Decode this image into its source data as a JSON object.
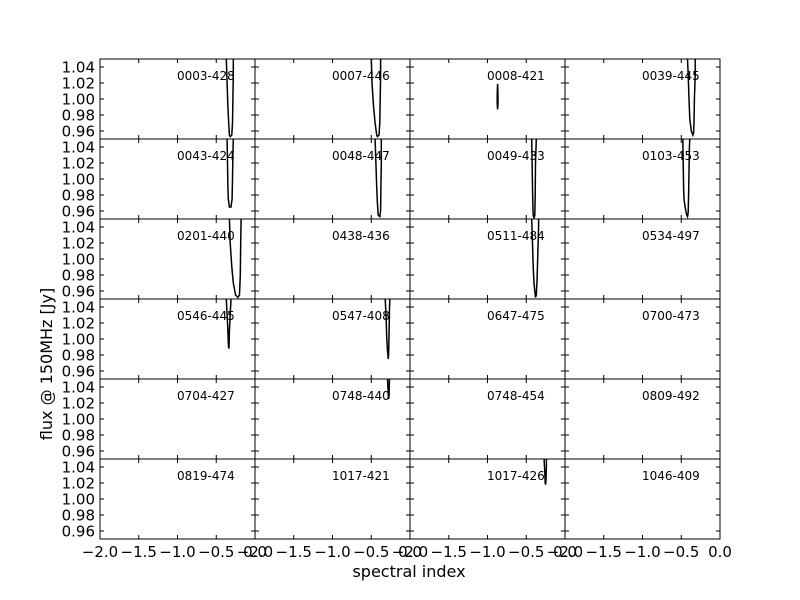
{
  "chart_data": {
    "type": "line",
    "xlabel": "spectral index",
    "ylabel": "flux @ 150MHz [Jy]",
    "xlim": [
      -2.0,
      0.0
    ],
    "ylim": [
      0.95,
      1.05
    ],
    "xticks": [
      "−2.0",
      "−1.5",
      "−1.0",
      "−0.5",
      "0.0"
    ],
    "yticks": [
      "0.96",
      "0.98",
      "1.00",
      "1.02",
      "1.04"
    ],
    "grid": false,
    "layout": {
      "rows": 6,
      "cols": 4
    },
    "panels": [
      {
        "label": "0003-428",
        "contours": [
          [
            [
              -0.37,
              1.05
            ],
            [
              -0.36,
              1.02
            ],
            [
              -0.35,
              0.99
            ],
            [
              -0.34,
              0.97
            ],
            [
              -0.33,
              0.955
            ],
            [
              -0.32,
              0.953
            ],
            [
              -0.3,
              0.955
            ],
            [
              -0.29,
              0.97
            ],
            [
              -0.285,
              1.0
            ],
            [
              -0.28,
              1.03
            ],
            [
              -0.28,
              1.05
            ]
          ]
        ]
      },
      {
        "label": "0007-446",
        "contours": [
          [
            [
              -0.5,
              1.05
            ],
            [
              -0.49,
              1.02
            ],
            [
              -0.47,
              0.99
            ],
            [
              -0.45,
              0.97
            ],
            [
              -0.43,
              0.955
            ],
            [
              -0.42,
              0.953
            ],
            [
              -0.4,
              0.955
            ],
            [
              -0.39,
              0.97
            ],
            [
              -0.385,
              1.0
            ],
            [
              -0.38,
              1.03
            ],
            [
              -0.38,
              1.05
            ]
          ]
        ]
      },
      {
        "label": "0008-421",
        "contours": [
          [
            [
              -0.87,
              0.987
            ],
            [
              -0.875,
              0.995
            ],
            [
              -0.875,
              1.005
            ],
            [
              -0.87,
              1.019
            ],
            [
              -0.865,
              1.005
            ],
            [
              -0.865,
              0.995
            ],
            [
              -0.87,
              0.987
            ]
          ]
        ]
      },
      {
        "label": "0039-445",
        "contours": [
          [
            [
              -0.42,
              1.05
            ],
            [
              -0.41,
              1.03
            ],
            [
              -0.4,
              1.0
            ],
            [
              -0.39,
              0.975
            ],
            [
              -0.37,
              0.96
            ],
            [
              -0.35,
              0.955
            ],
            [
              -0.34,
              0.958
            ],
            [
              -0.335,
              0.97
            ],
            [
              -0.33,
              1.0
            ],
            [
              -0.32,
              1.03
            ],
            [
              -0.32,
              1.05
            ]
          ]
        ]
      },
      {
        "label": "0043-424",
        "contours": [
          [
            [
              -0.36,
              1.05
            ],
            [
              -0.355,
              1.02
            ],
            [
              -0.35,
              0.99
            ],
            [
              -0.345,
              0.975
            ],
            [
              -0.33,
              0.965
            ],
            [
              -0.31,
              0.965
            ],
            [
              -0.295,
              0.975
            ],
            [
              -0.29,
              1.0
            ],
            [
              -0.285,
              1.03
            ],
            [
              -0.28,
              1.05
            ]
          ]
        ]
      },
      {
        "label": "0048-447",
        "contours": [
          [
            [
              -0.45,
              1.05
            ],
            [
              -0.44,
              1.02
            ],
            [
              -0.43,
              0.99
            ],
            [
              -0.42,
              0.97
            ],
            [
              -0.41,
              0.955
            ],
            [
              -0.39,
              0.953
            ],
            [
              -0.38,
              0.96
            ],
            [
              -0.375,
              0.99
            ],
            [
              -0.37,
              1.02
            ],
            [
              -0.37,
              1.05
            ]
          ]
        ]
      },
      {
        "label": "0049-433",
        "contours": [
          [
            [
              -0.43,
              1.05
            ],
            [
              -0.425,
              1.02
            ],
            [
              -0.42,
              0.99
            ],
            [
              -0.415,
              0.97
            ],
            [
              -0.41,
              0.955
            ],
            [
              -0.4,
              0.951
            ],
            [
              -0.39,
              0.955
            ],
            [
              -0.385,
              0.98
            ],
            [
              -0.38,
              1.02
            ],
            [
              -0.37,
              1.05
            ]
          ]
        ]
      },
      {
        "label": "0103-453",
        "contours": [
          [
            [
              -0.48,
              1.05
            ],
            [
              -0.475,
              1.02
            ],
            [
              -0.47,
              0.99
            ],
            [
              -0.465,
              0.975
            ],
            [
              -0.45,
              0.965
            ],
            [
              -0.43,
              0.955
            ],
            [
              -0.42,
              0.953
            ],
            [
              -0.41,
              0.958
            ],
            [
              -0.405,
              0.98
            ],
            [
              -0.4,
              1.01
            ],
            [
              -0.395,
              1.04
            ],
            [
              -0.39,
              1.05
            ]
          ]
        ]
      },
      {
        "label": "0201-440",
        "contours": [
          [
            [
              -0.33,
              1.05
            ],
            [
              -0.32,
              1.02
            ],
            [
              -0.3,
              0.99
            ],
            [
              -0.28,
              0.97
            ],
            [
              -0.25,
              0.955
            ],
            [
              -0.22,
              0.952
            ],
            [
              -0.2,
              0.955
            ],
            [
              -0.19,
              0.98
            ],
            [
              -0.185,
              1.02
            ],
            [
              -0.18,
              1.05
            ]
          ]
        ]
      },
      {
        "label": "0438-436",
        "contours": []
      },
      {
        "label": "0511-484",
        "contours": [
          [
            [
              -0.43,
              1.05
            ],
            [
              -0.42,
              1.02
            ],
            [
              -0.41,
              0.99
            ],
            [
              -0.4,
              0.97
            ],
            [
              -0.39,
              0.96
            ],
            [
              -0.38,
              0.952
            ],
            [
              -0.37,
              0.955
            ],
            [
              -0.36,
              0.975
            ],
            [
              -0.35,
              1.01
            ],
            [
              -0.34,
              1.04
            ],
            [
              -0.34,
              1.05
            ]
          ]
        ]
      },
      {
        "label": "0534-497",
        "contours": []
      },
      {
        "label": "0546-445",
        "contours": [
          [
            [
              -0.37,
              1.05
            ],
            [
              -0.36,
              1.03
            ],
            [
              -0.35,
              1.01
            ],
            [
              -0.345,
              0.995
            ],
            [
              -0.34,
              0.988
            ],
            [
              -0.335,
              0.99
            ],
            [
              -0.33,
              1.01
            ],
            [
              -0.32,
              1.03
            ],
            [
              -0.31,
              1.05
            ]
          ]
        ]
      },
      {
        "label": "0547-408",
        "contours": [
          [
            [
              -0.32,
              1.05
            ],
            [
              -0.31,
              1.03
            ],
            [
              -0.3,
              1.0
            ],
            [
              -0.29,
              0.985
            ],
            [
              -0.28,
              0.975
            ],
            [
              -0.275,
              0.985
            ],
            [
              -0.27,
              1.01
            ],
            [
              -0.265,
              1.04
            ],
            [
              -0.26,
              1.05
            ]
          ]
        ]
      },
      {
        "label": "0647-475",
        "contours": []
      },
      {
        "label": "0700-473",
        "contours": []
      },
      {
        "label": "0704-427",
        "contours": []
      },
      {
        "label": "0748-440",
        "contours": [
          [
            [
              -0.29,
              1.05
            ],
            [
              -0.285,
              1.04
            ],
            [
              -0.28,
              1.03
            ],
            [
              -0.275,
              1.025
            ],
            [
              -0.27,
              1.03
            ],
            [
              -0.268,
              1.04
            ],
            [
              -0.265,
              1.05
            ]
          ]
        ]
      },
      {
        "label": "0748-454",
        "contours": []
      },
      {
        "label": "0809-492",
        "contours": []
      },
      {
        "label": "0819-474",
        "contours": []
      },
      {
        "label": "1017-421",
        "contours": []
      },
      {
        "label": "1017-426",
        "contours": [
          [
            [
              -0.27,
              1.05
            ],
            [
              -0.265,
              1.04
            ],
            [
              -0.26,
              1.03
            ],
            [
              -0.255,
              1.02
            ],
            [
              -0.25,
              1.018
            ],
            [
              -0.245,
              1.025
            ],
            [
              -0.24,
              1.04
            ],
            [
              -0.24,
              1.05
            ]
          ]
        ]
      },
      {
        "label": "1046-409",
        "contours": []
      }
    ]
  }
}
